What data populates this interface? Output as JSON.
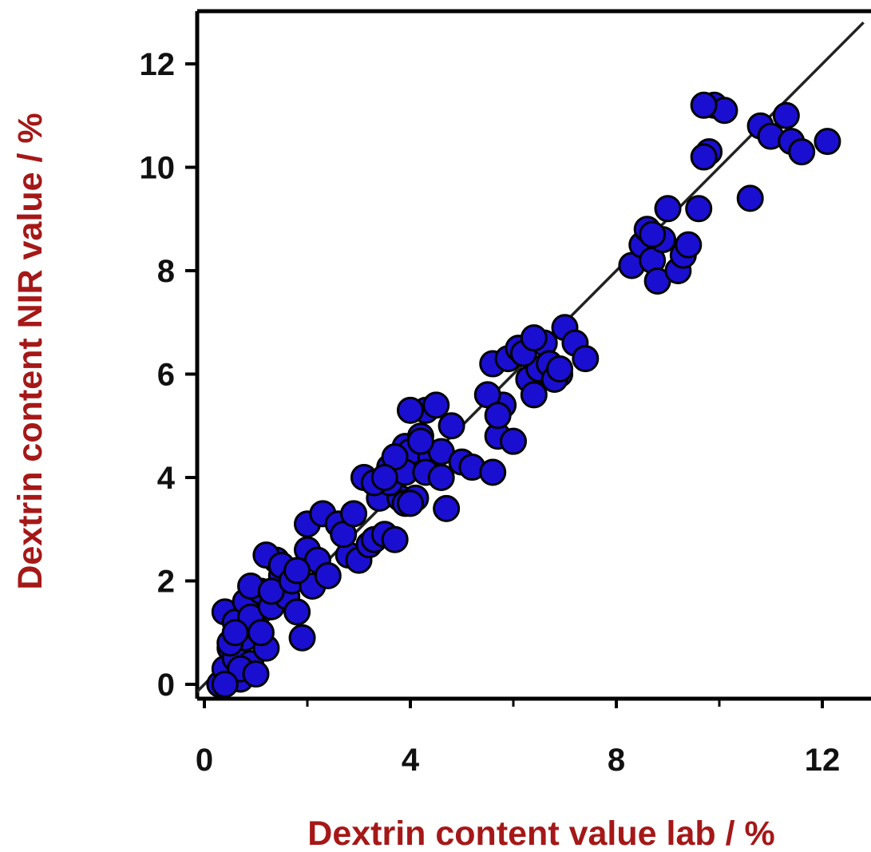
{
  "chart_data": {
    "type": "scatter",
    "xlabel": "Dextrin content value lab / %",
    "ylabel": "Dextrin content NIR value / %",
    "xlim": [
      -0.2,
      12.8
    ],
    "ylim": [
      -0.3,
      12.9
    ],
    "xticks": [
      0,
      4,
      8,
      12
    ],
    "yticks": [
      0,
      2,
      4,
      6,
      8,
      10,
      12
    ],
    "xtick_labels": [
      "0",
      "4",
      "8",
      "12"
    ],
    "ytick_labels": [
      "0",
      "2",
      "4",
      "6",
      "8",
      "10",
      "12"
    ],
    "grid": false,
    "legend": "none",
    "reference_line": {
      "type": "identity",
      "from": [
        -0.2,
        -0.2
      ],
      "to": [
        12.8,
        12.8
      ]
    },
    "colors": {
      "marker_fill": "#1a0fd0",
      "marker_edge": "#000000",
      "axis_title": "#a51818",
      "line": "#222222"
    },
    "series": [
      {
        "x": [
          0.3,
          0.4,
          0.5,
          0.6,
          0.7,
          0.8,
          0.9,
          0.4,
          0.6,
          0.8,
          1.0,
          0.5,
          0.7,
          0.9,
          1.1,
          1.2,
          0.6,
          0.9,
          1.0,
          1.3,
          0.4,
          1.1,
          1.4,
          1.5,
          1.2,
          1.6,
          1.8,
          1.3,
          1.5,
          1.7,
          2.0,
          1.9,
          2.1,
          2.2,
          2.0,
          2.3,
          1.8,
          2.4,
          2.6,
          2.8,
          3.0,
          2.7,
          2.9,
          3.1,
          3.2,
          3.3,
          3.5,
          3.4,
          3.6,
          3.7,
          3.8,
          3.9,
          4.0,
          3.6,
          3.9,
          4.1,
          4.2,
          4.3,
          4.4,
          4.5,
          4.0,
          4.6,
          4.8,
          4.7,
          5.0,
          5.2,
          4.3,
          4.6,
          3.9,
          4.2,
          3.3,
          3.7,
          3.5,
          4.0,
          5.6,
          5.7,
          5.8,
          5.5,
          5.6,
          5.9,
          6.1,
          6.3,
          6.4,
          6.5,
          6.2,
          6.6,
          6.7,
          6.9,
          6.8,
          7.0,
          7.2,
          7.4,
          6.4,
          6.9,
          5.7,
          6.0,
          8.3,
          8.5,
          8.6,
          8.7,
          8.8,
          8.9,
          9.0,
          9.2,
          9.3,
          9.4,
          8.7,
          9.6,
          9.8,
          9.9,
          10.1,
          9.7,
          10.6,
          10.8,
          11.0,
          11.3,
          11.4,
          11.6,
          12.1,
          9.7
        ],
        "y": [
          0.0,
          0.3,
          0.7,
          0.5,
          0.1,
          0.9,
          0.4,
          1.4,
          1.2,
          1.6,
          1.1,
          0.8,
          0.3,
          1.3,
          1.8,
          0.7,
          1.0,
          1.9,
          0.2,
          1.5,
          0.0,
          1.0,
          2.4,
          2.1,
          2.5,
          1.7,
          1.4,
          1.8,
          2.3,
          2.0,
          2.6,
          0.9,
          1.9,
          2.4,
          3.1,
          3.3,
          2.2,
          2.1,
          3.1,
          2.5,
          2.4,
          2.9,
          3.3,
          4.0,
          2.7,
          2.8,
          2.9,
          3.6,
          4.2,
          2.8,
          3.6,
          4.6,
          4.5,
          3.9,
          4.1,
          3.6,
          4.8,
          5.3,
          4.4,
          5.4,
          5.3,
          4.5,
          5.0,
          3.4,
          4.3,
          4.2,
          4.1,
          4.0,
          3.5,
          4.7,
          3.9,
          4.4,
          4.0,
          3.5,
          4.1,
          4.8,
          5.4,
          5.6,
          6.2,
          6.3,
          6.5,
          5.9,
          5.6,
          6.1,
          6.4,
          6.6,
          6.2,
          6.0,
          5.9,
          6.9,
          6.6,
          6.3,
          6.7,
          6.1,
          5.2,
          4.7,
          8.1,
          8.5,
          8.8,
          8.2,
          7.8,
          8.6,
          9.2,
          8.0,
          8.3,
          8.5,
          8.7,
          9.2,
          10.3,
          11.2,
          11.1,
          11.2,
          9.4,
          10.8,
          10.6,
          11.0,
          10.5,
          10.3,
          10.5,
          10.2
        ]
      }
    ]
  }
}
